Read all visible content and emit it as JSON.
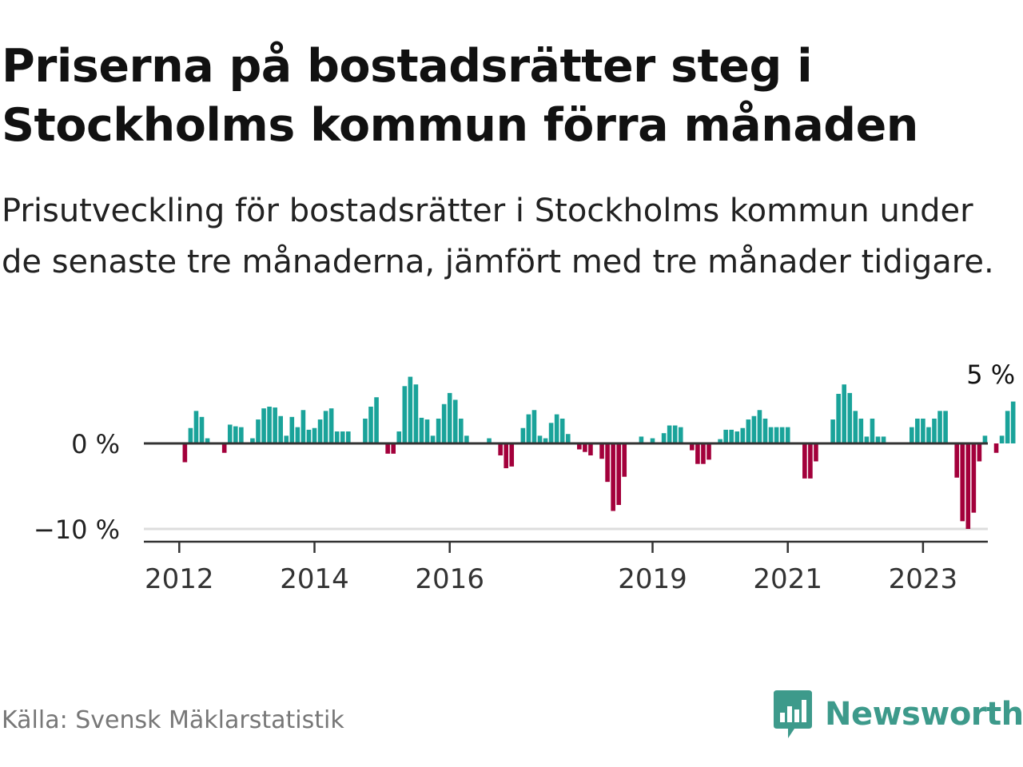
{
  "header": {
    "title": "Priserna på bostadsrätter steg i Stockholms kommun förra månaden",
    "subtitle": "Prisutveckling för bostadsrätter i Stockholms kommun under de senaste tre månaderna, jämfört med tre månader tidigare."
  },
  "footer": {
    "source": "Källa: Svensk Mäklarstatistik",
    "brand": "Newsworthy",
    "brand_icon": "newsworthy-logo-icon"
  },
  "colors": {
    "positive": "#1aa39a",
    "negative": "#a3003b",
    "axis": "#333333",
    "grid": "#dddddd",
    "brand": "#3d9a8b"
  },
  "chart_data": {
    "type": "bar",
    "title": "Prisutveckling för bostadsrätter i Stockholms kommun",
    "xlabel": "",
    "ylabel": "",
    "unit": "%",
    "ylim": [
      -10.5,
      8
    ],
    "y_ticks": [
      0,
      -10
    ],
    "y_tick_labels": [
      "0 %",
      "−10 %"
    ],
    "x_ticks": [
      {
        "year": 2012,
        "label": "2012"
      },
      {
        "year": 2014,
        "label": "2014"
      },
      {
        "year": 2016,
        "label": "2016"
      },
      {
        "year": 2019,
        "label": "2019"
      },
      {
        "year": 2021,
        "label": "2021"
      },
      {
        "year": 2023,
        "label": "2023"
      }
    ],
    "start": {
      "year": 2011,
      "month": 7
    },
    "last_label": "5 %",
    "values": [
      0,
      0,
      0,
      0,
      0,
      0,
      0,
      -2.2,
      1.8,
      3.8,
      3.1,
      0.6,
      0,
      0,
      -1.1,
      2.2,
      2,
      1.9,
      0,
      0.6,
      2.8,
      4.1,
      4.3,
      4.2,
      3.2,
      0.9,
      3.1,
      1.9,
      3.9,
      1.6,
      1.8,
      2.8,
      3.8,
      4.1,
      1.4,
      1.4,
      1.4,
      0,
      0,
      2.9,
      4.3,
      5.4,
      0,
      -1.2,
      -1.2,
      1.4,
      6.7,
      7.8,
      6.9,
      3,
      2.8,
      0.9,
      2.9,
      4.6,
      5.9,
      5.1,
      2.9,
      0.9,
      0,
      0,
      0,
      0.6,
      0,
      -1.4,
      -2.9,
      -2.7,
      0,
      1.8,
      3.4,
      3.9,
      0.9,
      0.6,
      2.4,
      3.4,
      2.9,
      1.1,
      0,
      -0.7,
      -1,
      -1.4,
      0,
      -1.8,
      -4.5,
      -7.9,
      -7.2,
      -3.9,
      0,
      0,
      0.8,
      0,
      0.6,
      0,
      1.2,
      2.1,
      2.1,
      1.9,
      0,
      -0.8,
      -2.4,
      -2.4,
      -1.9,
      0,
      0.5,
      1.6,
      1.6,
      1.4,
      1.8,
      2.8,
      3.2,
      3.9,
      2.9,
      1.9,
      1.9,
      1.9,
      1.9,
      0,
      0,
      -4.1,
      -4.1,
      -2.1,
      0,
      0,
      2.8,
      5.8,
      6.9,
      5.9,
      3.8,
      2.9,
      0.8,
      2.9,
      0.8,
      0.8,
      0,
      0,
      0,
      0,
      1.9,
      2.9,
      2.9,
      1.9,
      2.9,
      3.8,
      3.8,
      0,
      -4,
      -9.1,
      -10,
      -8.1,
      -2.1,
      0.9,
      0,
      -1.1,
      0.9,
      3.8,
      4.9
    ]
  }
}
